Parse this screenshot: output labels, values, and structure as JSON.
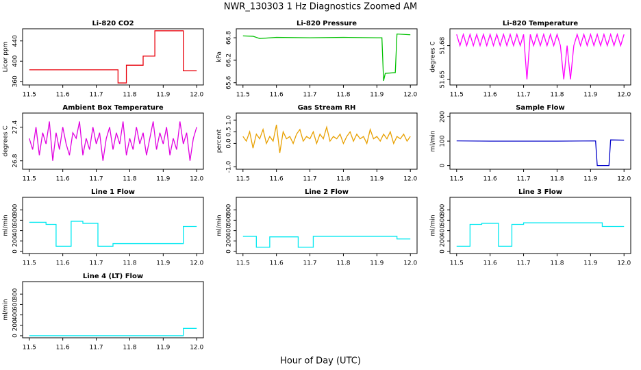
{
  "title": "NWR_130303  1 Hz Diagnostics Zoomed AM",
  "xlabel": "Hour of Day (UTC)",
  "chart_data": [
    {
      "type": "line",
      "title": "Li-820 CO2",
      "ylabel": "Licor ppm",
      "color": "#e8000b",
      "x": [
        11.5,
        11.765,
        11.765,
        11.79,
        11.79,
        11.84,
        11.84,
        11.875,
        11.875,
        11.96,
        11.96,
        12.0
      ],
      "values": [
        383,
        383,
        357,
        357,
        392,
        392,
        410,
        410,
        460,
        460,
        381,
        381
      ],
      "xlim": [
        11.48,
        12.02
      ],
      "ylim": [
        353,
        464
      ],
      "xticks": [
        11.5,
        11.6,
        11.7,
        11.8,
        11.9,
        {
          "value": 12,
          "label": "12.0"
        }
      ],
      "yticks": [
        360,
        400,
        440
      ]
    },
    {
      "type": "line",
      "title": "Li-820 Pressure",
      "ylabel": "kPa",
      "color": "#00c000",
      "x": [
        11.5,
        11.53,
        11.55,
        11.6,
        11.7,
        11.8,
        11.9,
        11.915,
        11.92,
        11.925,
        11.955,
        11.96,
        12.0
      ],
      "values": [
        66.85,
        66.84,
        66.78,
        66.81,
        66.8,
        66.81,
        66.8,
        66.8,
        65.65,
        65.85,
        65.87,
        66.9,
        66.88
      ],
      "xlim": [
        11.48,
        12.02
      ],
      "ylim": [
        65.54,
        67.04
      ],
      "xticks": [
        11.5,
        11.6,
        11.7,
        11.8,
        11.9,
        {
          "value": 12,
          "label": "12.0"
        }
      ],
      "yticks": [
        65.6,
        66.2,
        66.8
      ]
    },
    {
      "type": "line",
      "title": "Li-820 Temperature",
      "ylabel": "degrees C",
      "color": "#ff00ff",
      "x": [
        11.5,
        11.51,
        11.52,
        11.53,
        11.54,
        11.55,
        11.56,
        11.57,
        11.58,
        11.59,
        11.6,
        11.61,
        11.62,
        11.63,
        11.64,
        11.65,
        11.66,
        11.67,
        11.68,
        11.69,
        11.7,
        11.71,
        11.72,
        11.73,
        11.74,
        11.75,
        11.76,
        11.77,
        11.78,
        11.79,
        11.8,
        11.81,
        11.82,
        11.83,
        11.84,
        11.85,
        11.86,
        11.87,
        11.88,
        11.89,
        11.9,
        11.91,
        11.92,
        11.93,
        11.94,
        11.95,
        11.96,
        11.97,
        11.98,
        11.99,
        12.0
      ],
      "values": [
        51.69,
        51.68,
        51.69,
        51.68,
        51.69,
        51.68,
        51.69,
        51.68,
        51.69,
        51.68,
        51.69,
        51.68,
        51.69,
        51.68,
        51.69,
        51.68,
        51.69,
        51.68,
        51.69,
        51.68,
        51.69,
        51.65,
        51.69,
        51.68,
        51.69,
        51.68,
        51.69,
        51.68,
        51.69,
        51.68,
        51.69,
        51.68,
        51.65,
        51.68,
        51.65,
        51.68,
        51.69,
        51.68,
        51.69,
        51.68,
        51.69,
        51.68,
        51.69,
        51.68,
        51.69,
        51.68,
        51.69,
        51.68,
        51.69,
        51.68,
        51.69
      ],
      "xlim": [
        11.48,
        12.02
      ],
      "ylim": [
        51.645,
        51.695
      ],
      "xticks": [
        11.5,
        11.6,
        11.7,
        11.8,
        11.9,
        {
          "value": 12,
          "label": "12.0"
        }
      ],
      "yticks": [
        51.65,
        51.68
      ]
    },
    {
      "type": "line",
      "title": "Ambient Box Temperature",
      "ylabel": "degrees C",
      "color": "#e000e0",
      "x": [
        11.5,
        11.51,
        11.52,
        11.53,
        11.54,
        11.55,
        11.56,
        11.57,
        11.58,
        11.59,
        11.6,
        11.61,
        11.62,
        11.63,
        11.64,
        11.65,
        11.66,
        11.67,
        11.68,
        11.69,
        11.7,
        11.71,
        11.72,
        11.73,
        11.74,
        11.75,
        11.76,
        11.77,
        11.78,
        11.79,
        11.8,
        11.81,
        11.82,
        11.83,
        11.84,
        11.85,
        11.86,
        11.87,
        11.88,
        11.89,
        11.9,
        11.91,
        11.92,
        11.93,
        11.94,
        11.95,
        11.96,
        11.97,
        11.98,
        11.99,
        12.0
      ],
      "values": [
        27.2,
        27.0,
        27.4,
        26.9,
        27.3,
        27.1,
        27.5,
        26.8,
        27.3,
        27.0,
        27.4,
        27.1,
        26.9,
        27.3,
        27.2,
        27.5,
        26.9,
        27.2,
        27.0,
        27.4,
        27.1,
        27.3,
        26.8,
        27.2,
        27.4,
        27.0,
        27.3,
        27.1,
        27.5,
        26.9,
        27.2,
        27.0,
        27.4,
        27.1,
        27.3,
        26.9,
        27.2,
        27.5,
        27.0,
        27.3,
        27.1,
        27.4,
        26.9,
        27.2,
        27.0,
        27.5,
        27.1,
        27.3,
        26.8,
        27.2,
        27.4
      ],
      "xlim": [
        11.48,
        12.02
      ],
      "ylim": [
        26.65,
        27.65
      ],
      "xticks": [
        11.5,
        11.6,
        11.7,
        11.8,
        11.9,
        {
          "value": 12,
          "label": "12.0"
        }
      ],
      "yticks": [
        26.8,
        27.4
      ]
    },
    {
      "type": "line",
      "title": "Gas Stream RH",
      "ylabel": "percent",
      "color": "#e8a000",
      "x": [
        11.5,
        11.51,
        11.52,
        11.53,
        11.54,
        11.55,
        11.56,
        11.57,
        11.58,
        11.59,
        11.6,
        11.61,
        11.62,
        11.63,
        11.64,
        11.65,
        11.66,
        11.67,
        11.68,
        11.69,
        11.7,
        11.71,
        11.72,
        11.73,
        11.74,
        11.75,
        11.76,
        11.77,
        11.78,
        11.79,
        11.8,
        11.81,
        11.82,
        11.83,
        11.84,
        11.85,
        11.86,
        11.87,
        11.88,
        11.89,
        11.9,
        11.91,
        11.92,
        11.93,
        11.94,
        11.95,
        11.96,
        11.97,
        11.98,
        11.99,
        12.0
      ],
      "values": [
        0.3,
        0.1,
        0.5,
        -0.2,
        0.4,
        0.2,
        0.6,
        0.0,
        0.3,
        0.1,
        0.8,
        -0.4,
        0.5,
        0.2,
        0.3,
        0.0,
        0.4,
        0.6,
        0.1,
        0.3,
        0.2,
        0.5,
        0.0,
        0.4,
        0.2,
        0.7,
        0.1,
        0.3,
        0.2,
        0.4,
        0.0,
        0.3,
        0.5,
        0.1,
        0.4,
        0.2,
        0.3,
        0.0,
        0.6,
        0.2,
        0.3,
        0.1,
        0.4,
        0.2,
        0.5,
        0.0,
        0.3,
        0.2,
        0.4,
        0.1,
        0.3
      ],
      "xlim": [
        11.48,
        12.02
      ],
      "ylim": [
        -1.1,
        1.3
      ],
      "xticks": [
        11.5,
        11.6,
        11.7,
        11.8,
        11.9,
        {
          "value": 12,
          "label": "12.0"
        }
      ],
      "yticks": [
        {
          "value": -1,
          "label": "-1.0"
        },
        {
          "value": 0,
          "label": "0.0"
        },
        0.5,
        {
          "value": 1,
          "label": "1.0"
        }
      ]
    },
    {
      "type": "line",
      "title": "Sample Flow",
      "ylabel": "ml/min",
      "color": "#0000c8",
      "x": [
        11.5,
        11.6,
        11.7,
        11.8,
        11.915,
        11.92,
        11.955,
        11.96,
        12.0
      ],
      "values": [
        101,
        100,
        100,
        100,
        101,
        0,
        0,
        105,
        104
      ],
      "xlim": [
        11.48,
        12.02
      ],
      "ylim": [
        -15,
        215
      ],
      "xticks": [
        11.5,
        11.6,
        11.7,
        11.8,
        11.9,
        {
          "value": 12,
          "label": "12.0"
        }
      ],
      "yticks": [
        0,
        100,
        200
      ]
    },
    {
      "type": "line",
      "title": "Line 1 Flow",
      "ylabel": "ml/min",
      "color": "#00e8f0",
      "x": [
        11.5,
        11.55,
        11.55,
        11.58,
        11.58,
        11.625,
        11.625,
        11.66,
        11.66,
        11.705,
        11.705,
        11.75,
        11.75,
        11.96,
        11.96,
        12.0
      ],
      "values": [
        560,
        560,
        520,
        520,
        100,
        100,
        580,
        580,
        540,
        540,
        100,
        100,
        150,
        150,
        480,
        480
      ],
      "xlim": [
        11.48,
        12.02
      ],
      "ylim": [
        -40,
        1040
      ],
      "xticks": [
        11.5,
        11.6,
        11.7,
        11.8,
        11.9,
        {
          "value": 12,
          "label": "12.0"
        }
      ],
      "yticks": [
        0,
        200,
        400,
        600,
        800
      ]
    },
    {
      "type": "line",
      "title": "Line 2 Flow",
      "ylabel": "ml/min",
      "color": "#00e8f0",
      "x": [
        11.5,
        11.54,
        11.54,
        11.58,
        11.58,
        11.665,
        11.665,
        11.71,
        11.71,
        11.96,
        11.96,
        12.0
      ],
      "values": [
        290,
        290,
        80,
        80,
        280,
        280,
        80,
        80,
        290,
        290,
        240,
        240
      ],
      "xlim": [
        11.48,
        12.02
      ],
      "ylim": [
        -40,
        1040
      ],
      "xticks": [
        11.5,
        11.6,
        11.7,
        11.8,
        11.9,
        {
          "value": 12,
          "label": "12.0"
        }
      ],
      "yticks": [
        0,
        200,
        400,
        600,
        800
      ]
    },
    {
      "type": "line",
      "title": "Line 3 Flow",
      "ylabel": "ml/min",
      "color": "#00e8f0",
      "x": [
        11.5,
        11.54,
        11.54,
        11.575,
        11.575,
        11.625,
        11.625,
        11.665,
        11.665,
        11.7,
        11.7,
        11.935,
        11.935,
        12.0
      ],
      "values": [
        100,
        100,
        520,
        520,
        540,
        540,
        100,
        100,
        520,
        520,
        550,
        550,
        480,
        480
      ],
      "xlim": [
        11.48,
        12.02
      ],
      "ylim": [
        -40,
        1040
      ],
      "xticks": [
        11.5,
        11.6,
        11.7,
        11.8,
        11.9,
        {
          "value": 12,
          "label": "12.0"
        }
      ],
      "yticks": [
        0,
        200,
        400,
        600,
        800
      ]
    },
    {
      "type": "line",
      "title": "Line 4 (LT) Flow",
      "ylabel": "ml/min",
      "color": "#00e8f0",
      "x": [
        11.5,
        11.96,
        11.96,
        12.0
      ],
      "values": [
        0,
        0,
        140,
        140
      ],
      "xlim": [
        11.48,
        12.02
      ],
      "ylim": [
        -40,
        1040
      ],
      "xticks": [
        11.5,
        11.6,
        11.7,
        11.8,
        11.9,
        {
          "value": 12,
          "label": "12.0"
        }
      ],
      "yticks": [
        0,
        200,
        400,
        600,
        800
      ]
    }
  ]
}
